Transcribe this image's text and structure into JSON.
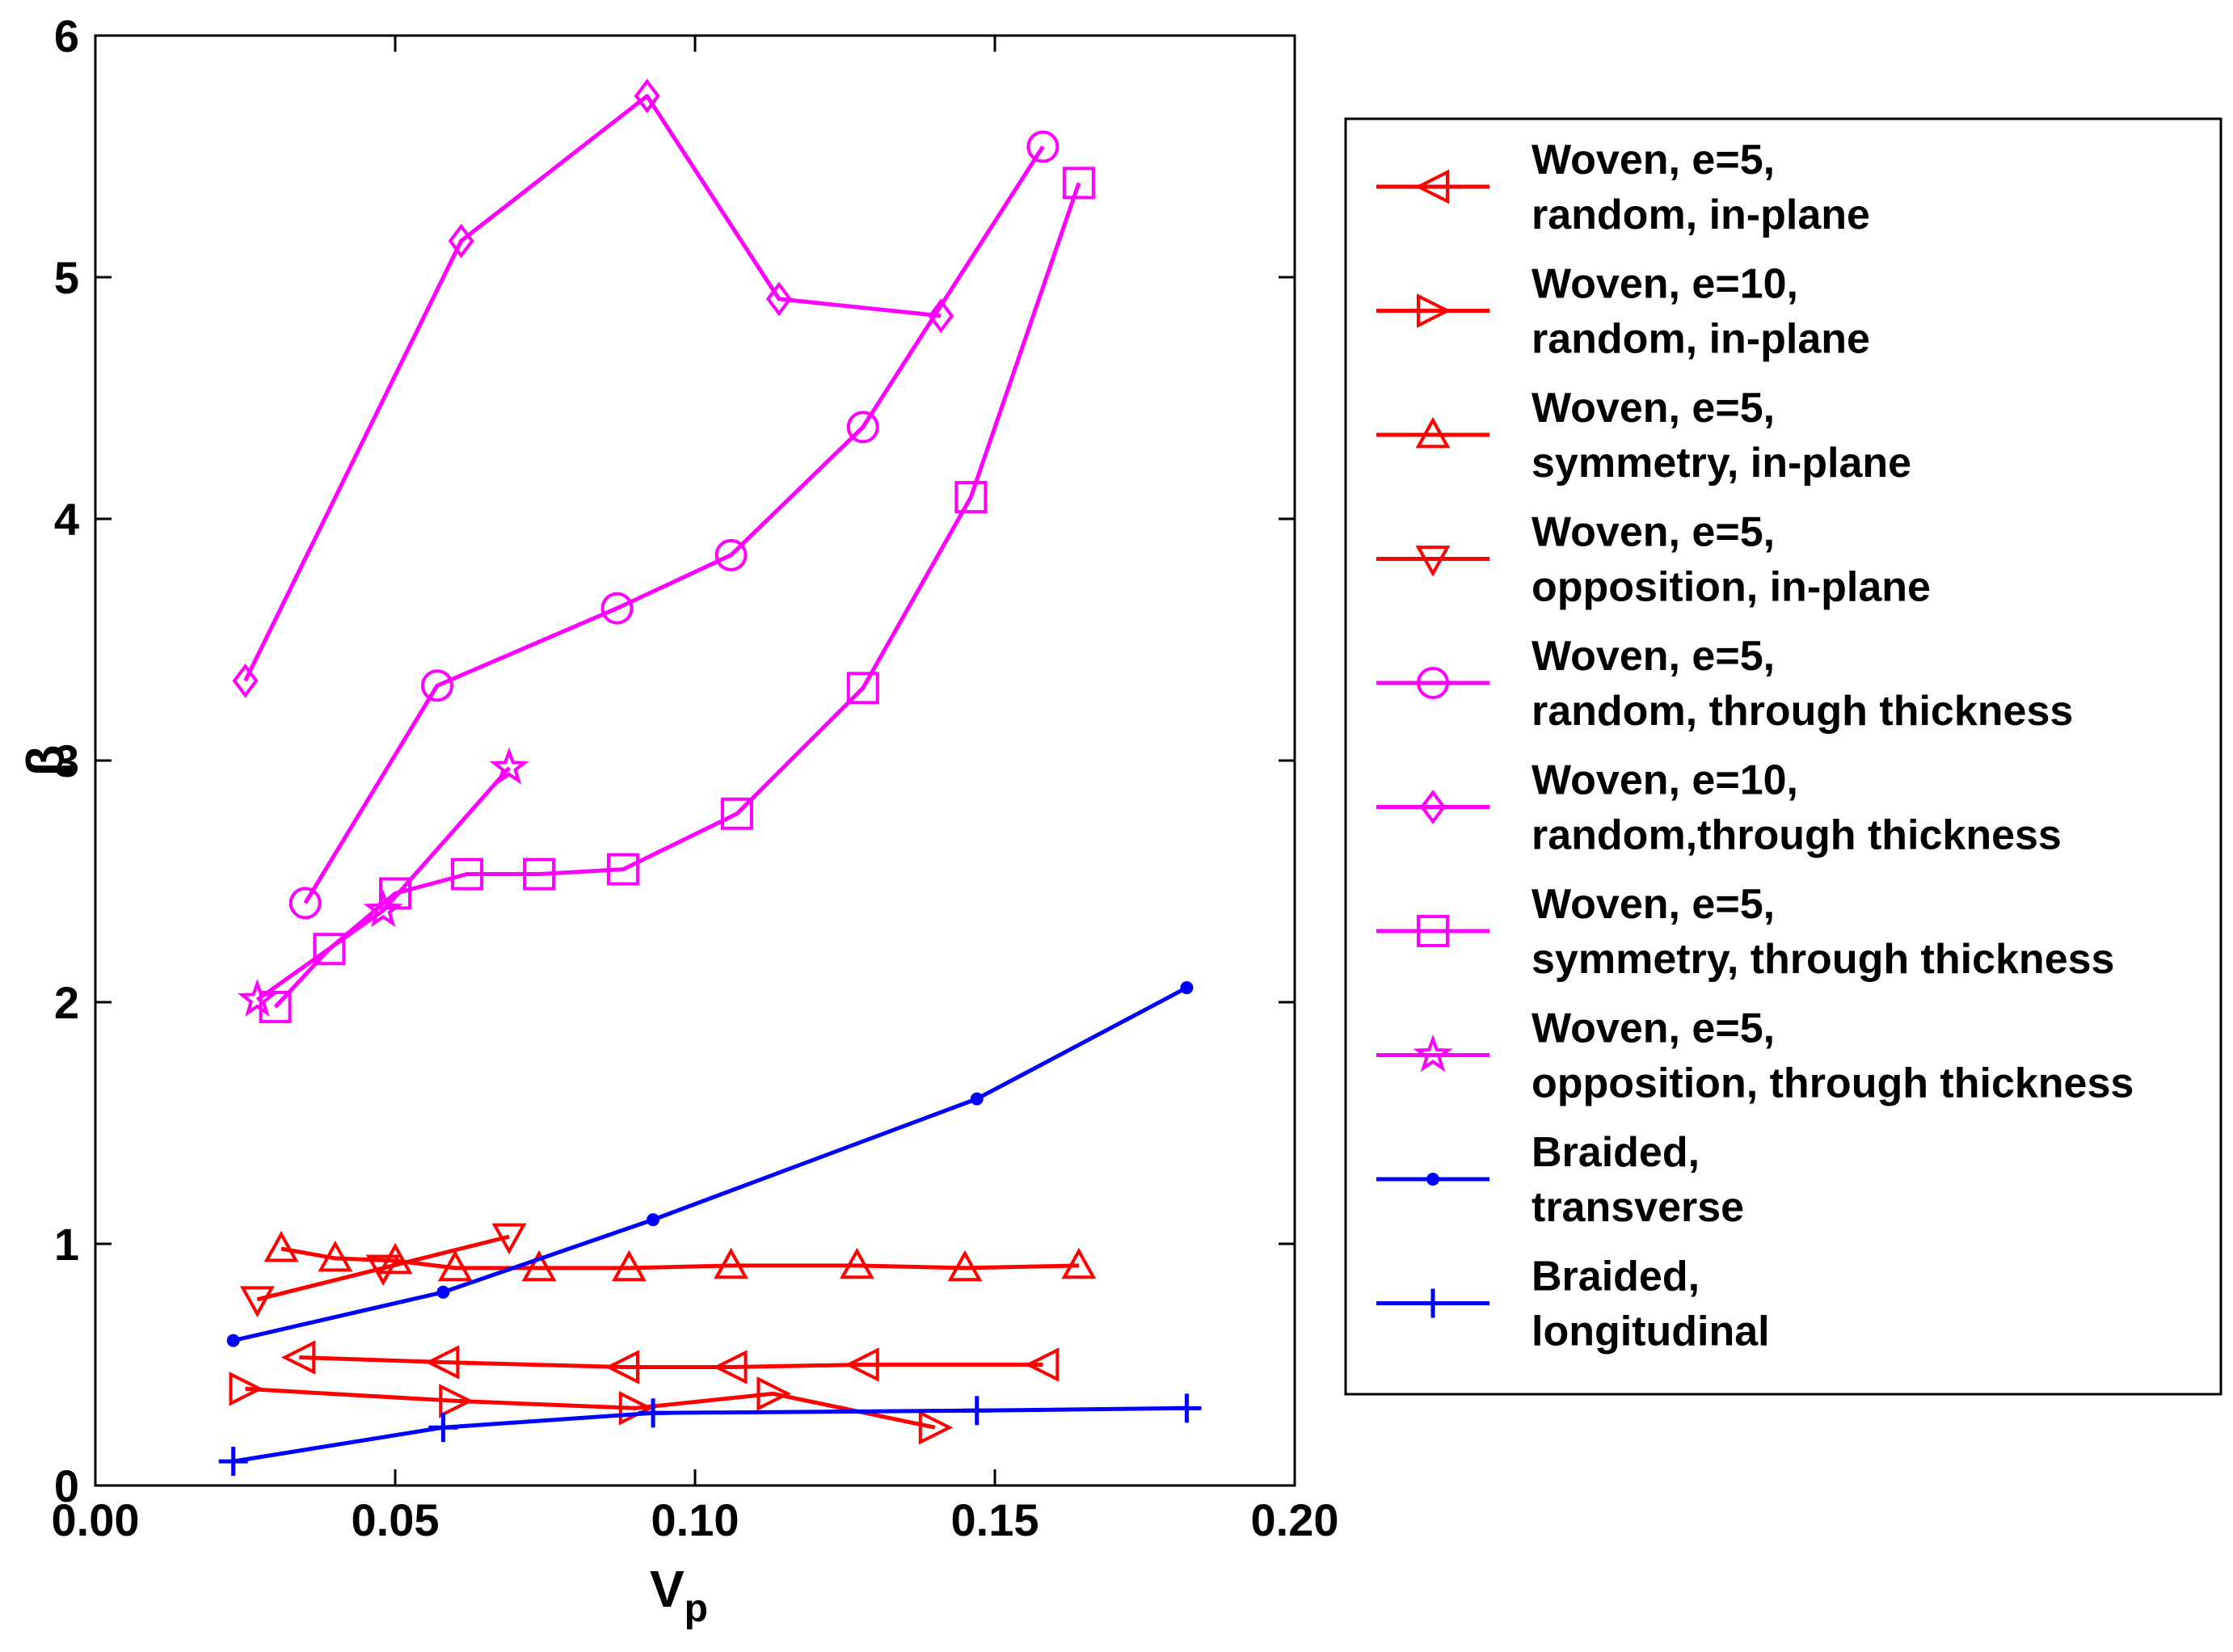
{
  "chart_data": {
    "type": "line",
    "title": "",
    "xlabel": "V",
    "xlabel_sub": "p",
    "ylabel": "β",
    "xlim": [
      0,
      0.2
    ],
    "ylim": [
      0,
      6
    ],
    "x_ticks": [
      "0.00",
      "0.05",
      "0.10",
      "0.15",
      "0.20"
    ],
    "y_ticks": [
      "0",
      "1",
      "2",
      "3",
      "4",
      "5",
      "6"
    ],
    "legend_position": "right-outside",
    "colors": {
      "red": "#ff0000",
      "magenta": "#ff00ff",
      "blue": "#0000ff"
    },
    "series": [
      {
        "id": "s1",
        "legend_lines": [
          "Woven, e=5,",
          "random, in-plane"
        ],
        "color": "#ff0000",
        "marker": "triangle-left",
        "x": [
          0.034,
          0.058,
          0.088,
          0.106,
          0.128,
          0.158
        ],
        "y": [
          0.53,
          0.51,
          0.49,
          0.49,
          0.5,
          0.5
        ]
      },
      {
        "id": "s2",
        "legend_lines": [
          "Woven, e=10,",
          "random, in-plane"
        ],
        "color": "#ff0000",
        "marker": "triangle-right",
        "x": [
          0.025,
          0.06,
          0.09,
          0.113,
          0.14
        ],
        "y": [
          0.4,
          0.35,
          0.32,
          0.38,
          0.24
        ]
      },
      {
        "id": "s3",
        "legend_lines": [
          "Woven, e=5,",
          "symmetry, in-plane"
        ],
        "color": "#ff0000",
        "marker": "triangle-up",
        "x": [
          0.031,
          0.04,
          0.05,
          0.06,
          0.074,
          0.089,
          0.106,
          0.127,
          0.145,
          0.164
        ],
        "y": [
          0.98,
          0.94,
          0.93,
          0.9,
          0.9,
          0.9,
          0.91,
          0.91,
          0.9,
          0.91
        ]
      },
      {
        "id": "s4",
        "legend_lines": [
          "Woven, e=5,",
          "opposition, in-plane"
        ],
        "color": "#ff0000",
        "marker": "triangle-down",
        "x": [
          0.027,
          0.048,
          0.069
        ],
        "y": [
          0.77,
          0.9,
          1.03
        ]
      },
      {
        "id": "s5",
        "legend_lines": [
          "Woven, e=5,",
          "random, through thickness"
        ],
        "color": "#ff00ff",
        "marker": "circle",
        "x": [
          0.035,
          0.057,
          0.087,
          0.106,
          0.128,
          0.158
        ],
        "y": [
          2.41,
          3.31,
          3.63,
          3.85,
          4.38,
          5.54
        ]
      },
      {
        "id": "s6",
        "legend_lines": [
          "Woven, e=10,",
          "random,through thickness"
        ],
        "color": "#ff00ff",
        "marker": "diamond",
        "x": [
          0.025,
          0.061,
          0.092,
          0.114,
          0.141
        ],
        "y": [
          3.33,
          5.15,
          5.75,
          4.91,
          4.84
        ]
      },
      {
        "id": "s7",
        "legend_lines": [
          "Woven, e=5,",
          "symmetry, through thickness"
        ],
        "color": "#ff00ff",
        "marker": "square",
        "x": [
          0.03,
          0.039,
          0.05,
          0.062,
          0.074,
          0.088,
          0.107,
          0.128,
          0.146,
          0.164
        ],
        "y": [
          1.98,
          2.22,
          2.45,
          2.53,
          2.53,
          2.55,
          2.78,
          3.3,
          4.09,
          5.39
        ]
      },
      {
        "id": "s8",
        "legend_lines": [
          "Woven, e=5,",
          "opposition, through thickness"
        ],
        "color": "#ff00ff",
        "marker": "star",
        "x": [
          0.027,
          0.048,
          0.069
        ],
        "y": [
          2.01,
          2.38,
          2.97
        ]
      },
      {
        "id": "s9",
        "legend_lines": [
          "Braided,",
          "transverse"
        ],
        "color": "#0000ff",
        "marker": "dot",
        "x": [
          0.023,
          0.058,
          0.093,
          0.147,
          0.182
        ],
        "y": [
          0.6,
          0.8,
          1.1,
          1.6,
          2.06
        ]
      },
      {
        "id": "s10",
        "legend_lines": [
          "Braided,",
          "longitudinal"
        ],
        "color": "#0000ff",
        "marker": "plus",
        "x": [
          0.023,
          0.058,
          0.093,
          0.147,
          0.182
        ],
        "y": [
          0.1,
          0.24,
          0.3,
          0.31,
          0.32
        ]
      }
    ]
  }
}
